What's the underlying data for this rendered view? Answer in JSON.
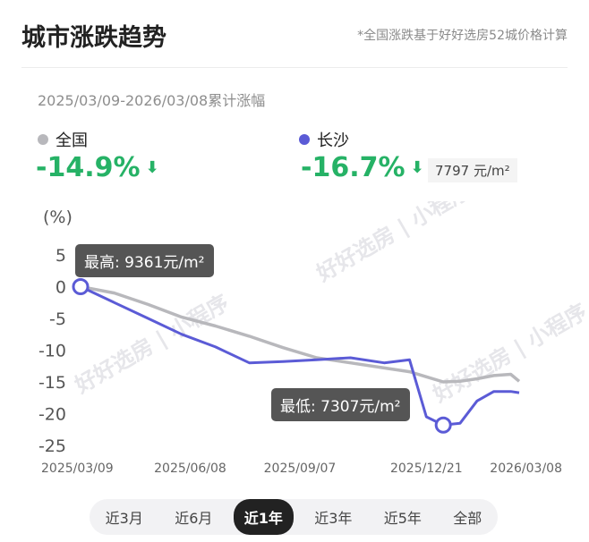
{
  "header": {
    "title": "城市涨跌趋势",
    "note": "*全国涨跌基于好好选房52城价格计算"
  },
  "period": "2025/03/09-2026/03/08累计涨幅",
  "legend": {
    "national": {
      "label": "全国",
      "change": "-14.9%",
      "color": "#b8b8bc"
    },
    "city": {
      "label": "长沙",
      "change": "-16.7%",
      "color": "#5b5bd6",
      "price": "7797 元/m²"
    }
  },
  "icons": {
    "down_arrow": "down-arrow-icon"
  },
  "tooltips": {
    "high": "最高: 9361元/m²",
    "low": "最低: 7307元/m²"
  },
  "watermark": "好好选房 | 小程序",
  "chart_data": {
    "type": "line",
    "ylabel": "(%)",
    "ylim": [
      -25,
      5
    ],
    "yticks": [
      "5",
      "0",
      "-5",
      "-10",
      "-15",
      "-20",
      "-25"
    ],
    "xticks": [
      "2025/03/09",
      "2025/06/08",
      "2025/09/07",
      "2025/12/21",
      "2026/03/08"
    ],
    "x": [
      "2025/03/09",
      "2025/04/06",
      "2025/05/04",
      "2025/06/01",
      "2025/06/29",
      "2025/07/27",
      "2025/08/24",
      "2025/09/21",
      "2025/10/19",
      "2025/11/16",
      "2025/12/07",
      "2025/12/21",
      "2026/01/04",
      "2026/01/18",
      "2026/02/01",
      "2026/02/15",
      "2026/03/01",
      "2026/03/08"
    ],
    "series": [
      {
        "name": "全国",
        "color": "#b8b8bc",
        "values": [
          0,
          -1.0,
          -2.8,
          -4.8,
          -6.2,
          -7.8,
          -9.6,
          -11.2,
          -12.0,
          -12.8,
          -13.4,
          -14.2,
          -15.0,
          -14.9,
          -14.5,
          -14.0,
          -13.8,
          -14.9
        ]
      },
      {
        "name": "长沙",
        "color": "#5b5bd6",
        "values": [
          0,
          -2.5,
          -5.0,
          -7.5,
          -9.5,
          -12.0,
          -11.8,
          -11.5,
          -11.2,
          -12.0,
          -11.5,
          -20.5,
          -21.8,
          -21.5,
          -18.0,
          -16.5,
          -16.5,
          -16.7
        ]
      }
    ],
    "annotations": [
      {
        "label": "最高: 9361元/m²",
        "x": "2025/03/09",
        "y": 0
      },
      {
        "label": "最低: 7307元/m²",
        "x": "2026/01/04",
        "y": -21.8
      }
    ]
  },
  "tabs": [
    {
      "label": "近3月",
      "active": false
    },
    {
      "label": "近6月",
      "active": false
    },
    {
      "label": "近1年",
      "active": true
    },
    {
      "label": "近3年",
      "active": false
    },
    {
      "label": "近5年",
      "active": false
    },
    {
      "label": "全部",
      "active": false
    }
  ]
}
